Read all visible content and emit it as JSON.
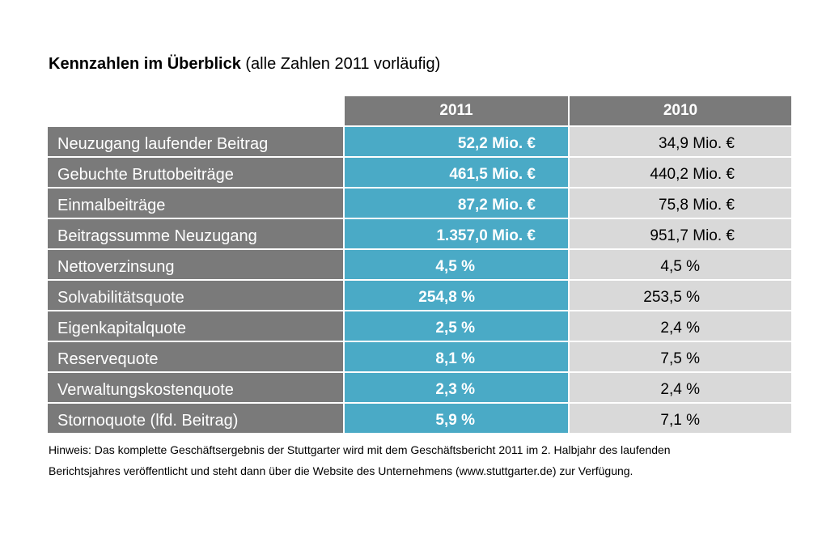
{
  "title": {
    "bold": "Kennzahlen im Überblick",
    "normal": " (alle Zahlen 2011 vorläufig)"
  },
  "table": {
    "headers": [
      "",
      "2011",
      "2010"
    ],
    "rows": [
      {
        "label": "Neuzugang laufender Beitrag",
        "v2011": "52,2 Mio. €",
        "v2010": "34,9 Mio. €"
      },
      {
        "label": "Gebuchte Bruttobeiträge",
        "v2011": "461,5 Mio. €",
        "v2010": "440,2 Mio. €"
      },
      {
        "label": "Einmalbeiträge",
        "v2011": "87,2 Mio. €",
        "v2010": "75,8 Mio. €"
      },
      {
        "label": "Beitragssumme Neuzugang",
        "v2011": "1.357,0 Mio. €",
        "v2010": "951,7 Mio. €"
      },
      {
        "label": "Nettoverzinsung",
        "v2011": "4,5 %",
        "v2010": "4,5 %"
      },
      {
        "label": "Solvabilitätsquote",
        "v2011": "254,8 %",
        "v2010": "253,5 %"
      },
      {
        "label": "Eigenkapitalquote",
        "v2011": "2,5 %",
        "v2010": "2,4 %"
      },
      {
        "label": "Reservequote",
        "v2011": "8,1 %",
        "v2010": "7,5 %"
      },
      {
        "label": "Verwaltungskostenquote",
        "v2011": "2,3 %",
        "v2010": "2,4 %"
      },
      {
        "label": "Stornoquote (lfd. Beitrag)",
        "v2011": "5,9 %",
        "v2010": "7,1 %"
      }
    ]
  },
  "note": {
    "line1": "Hinweis: Das komplette Geschäftsergebnis der Stuttgarter wird mit dem Geschäftsbericht 2011 im 2. Halbjahr des laufenden",
    "line2": "Berichtsjahres veröffentlicht und steht dann über die Website des Unternehmens (www.stuttgarter.de) zur Verfügung."
  },
  "colors": {
    "label_bg": "#7a7a7a",
    "highlight_bg": "#4aaac6",
    "compare_bg": "#d9d9d9"
  }
}
